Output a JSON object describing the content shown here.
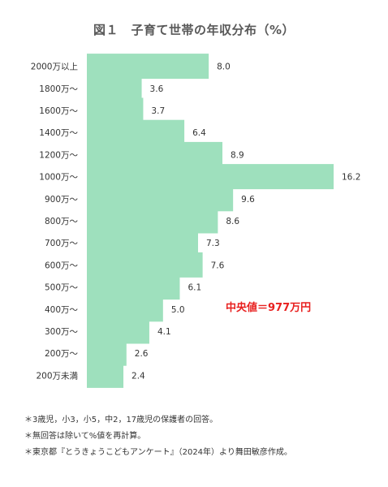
{
  "title": "図１　子育て世帯の年収分布（%）",
  "annotation": "中央値＝977万円",
  "notes": [
    "＊3歳児，小3，小5，中2，17歳児の保護者の回答。",
    "＊無回答は除いて%値を再計算。",
    "＊東京都『とうきょうこどもアンケート』（2024年）より舞田敏彦作成。"
  ],
  "colors": {
    "bar": "#9ee0bd",
    "annotation": "#e8201f"
  },
  "chart_data": {
    "type": "bar",
    "orientation": "horizontal",
    "title": "図１　子育て世帯の年収分布（%）",
    "categories": [
      "2000万以上",
      "1800万～",
      "1600万～",
      "1400万～",
      "1200万～",
      "1000万～",
      "900万～",
      "800万～",
      "700万～",
      "600万～",
      "500万～",
      "400万～",
      "300万～",
      "200万～",
      "200万未満"
    ],
    "values": [
      8.0,
      3.6,
      3.7,
      6.4,
      8.9,
      16.2,
      9.6,
      8.6,
      7.3,
      7.6,
      6.1,
      5.0,
      4.1,
      2.6,
      2.4
    ],
    "value_labels": [
      "8.0",
      "3.6",
      "3.7",
      "6.4",
      "8.9",
      "16.2",
      "9.6",
      "8.6",
      "7.3",
      "7.6",
      "6.1",
      "5.0",
      "4.1",
      "2.6",
      "2.4"
    ],
    "xlim": [
      0,
      16.2
    ],
    "grid": false,
    "legend": "none"
  }
}
